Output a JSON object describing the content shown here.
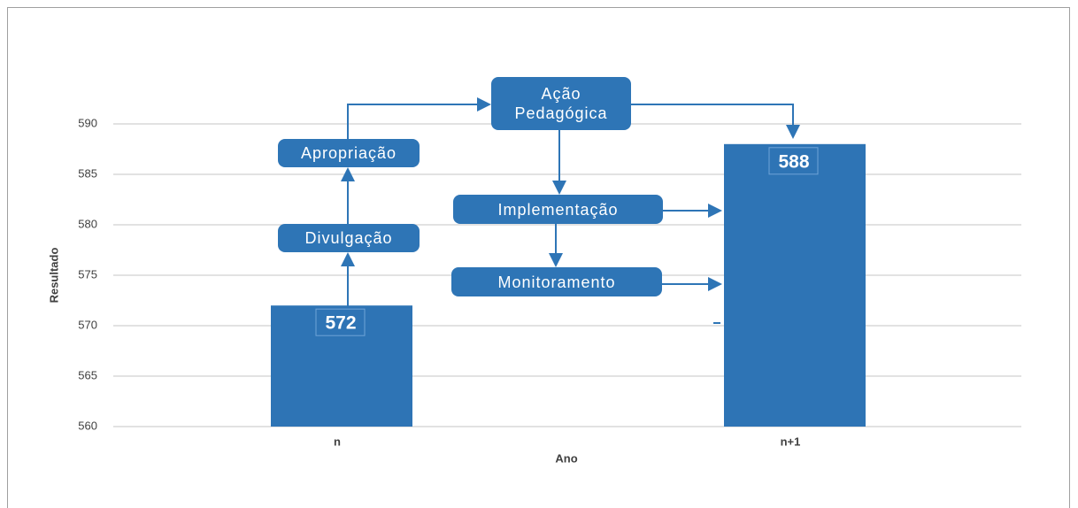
{
  "chart_data": {
    "type": "bar",
    "categories": [
      "n",
      "n+1"
    ],
    "values": [
      572,
      588
    ],
    "color": "#2e74b5",
    "xlabel": "Ano",
    "ylabel": "Resultado",
    "ylim": [
      560,
      590
    ],
    "yticks": [
      560,
      565,
      570,
      575,
      580,
      585,
      590
    ],
    "grid": true,
    "annotations": [
      "Ação Pedagógica",
      "Apropriação",
      "Divulgação",
      "Implementação",
      "Monitoramento"
    ]
  }
}
